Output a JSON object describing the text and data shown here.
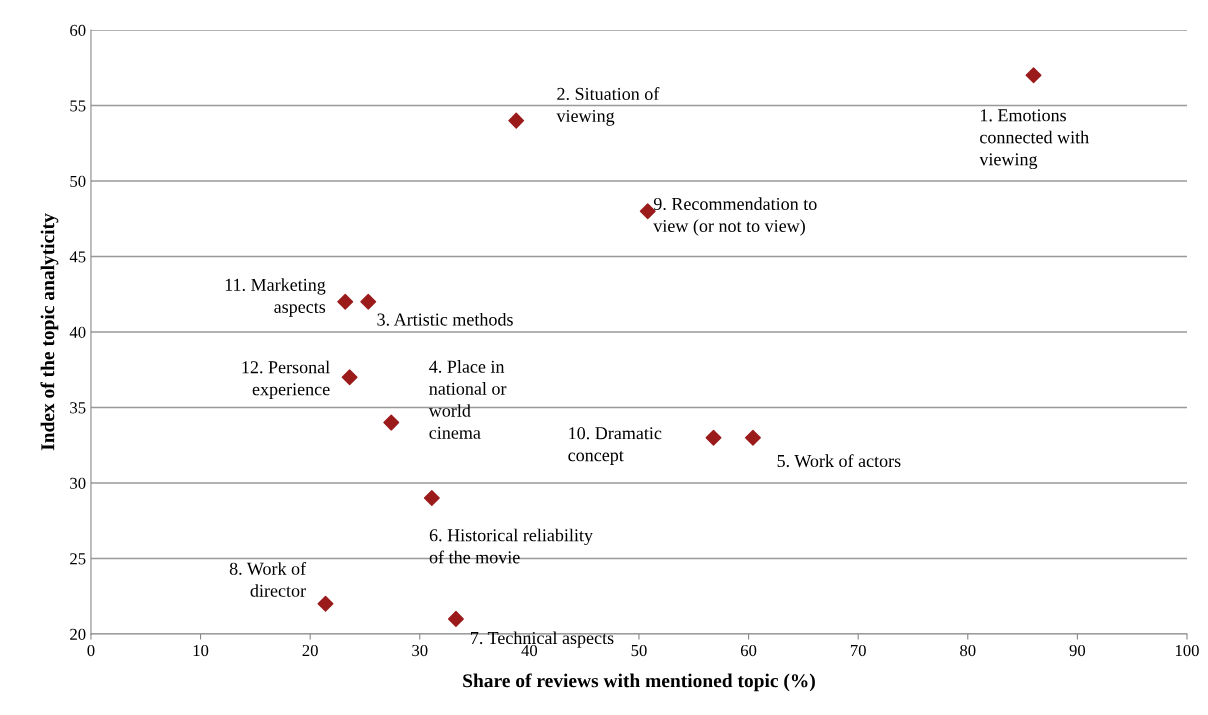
{
  "chart_data": {
    "type": "scatter",
    "xlabel": "Share of reviews with mentioned topic (%)",
    "ylabel": "Index of the topic analyticity",
    "x": [
      86,
      38.8,
      50.8,
      23.2,
      25.3,
      23.6,
      27.4,
      56.8,
      60.4,
      31.1,
      21.4,
      33.3
    ],
    "series": [
      {
        "color": "#9b1b1b",
        "values": [
          57,
          54,
          48,
          42,
          42,
          37,
          34,
          33,
          33,
          29,
          22,
          21
        ]
      }
    ],
    "marker": "diamond",
    "grid": "y",
    "legend": false,
    "xlim": [
      0,
      100
    ],
    "xticks": [
      0,
      10,
      20,
      30,
      40,
      50,
      60,
      70,
      80,
      90,
      100
    ],
    "ylim": [
      20,
      60
    ],
    "yticks": [
      20,
      25,
      30,
      35,
      40,
      45,
      50,
      55,
      60
    ],
    "annotations": [
      {
        "text": "1. Emotions\nconnected with\nviewing",
        "x": 86,
        "y": 57
      },
      {
        "text": "2. Situation of\nviewing",
        "x": 38.8,
        "y": 54
      },
      {
        "text": "9. Recommendation to\nview (or not to view)",
        "x": 50.8,
        "y": 48
      },
      {
        "text": "11. Marketing\naspects",
        "x": 23.2,
        "y": 42
      },
      {
        "text": "3. Artistic methods",
        "x": 25.3,
        "y": 42
      },
      {
        "text": "12. Personal\nexperience",
        "x": 23.6,
        "y": 37
      },
      {
        "text": "4. Place in\nnational or\nworld\ncinema",
        "x": 27.4,
        "y": 34
      },
      {
        "text": "10. Dramatic\nconcept",
        "x": 56.8,
        "y": 33
      },
      {
        "text": "5. Work of actors",
        "x": 60.4,
        "y": 33
      },
      {
        "text": "6. Historical reliability\nof the movie",
        "x": 31.1,
        "y": 29
      },
      {
        "text": "8. Work of\ndirector",
        "x": 21.4,
        "y": 22
      },
      {
        "text": "7. Technical aspects",
        "x": 33.3,
        "y": 21
      }
    ]
  }
}
